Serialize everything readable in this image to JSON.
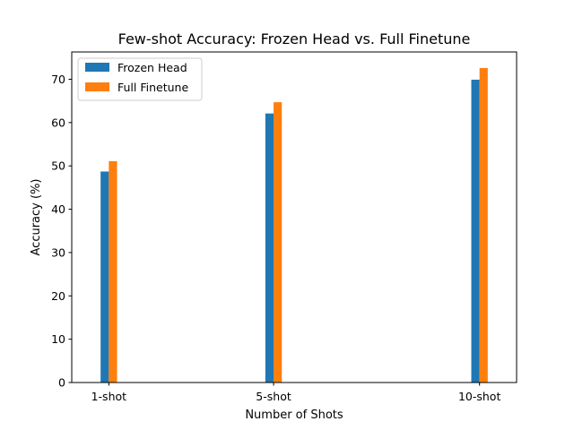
{
  "chart_data": {
    "type": "bar",
    "title": "Few-shot Accuracy: Frozen Head vs. Full Finetune",
    "xlabel": "Number of Shots",
    "ylabel": "Accuracy (%)",
    "x": [
      1,
      5,
      10
    ],
    "categories": [
      "1-shot",
      "5-shot",
      "10-shot"
    ],
    "xlim": [
      0.1,
      10.9
    ],
    "ylim": [
      0,
      76.3
    ],
    "yticks": [
      0,
      10,
      20,
      30,
      40,
      50,
      60,
      70
    ],
    "series": [
      {
        "name": "Frozen Head",
        "color": "#1f77b4",
        "values": [
          48.7,
          62.1,
          69.9
        ]
      },
      {
        "name": "Full Finetune",
        "color": "#ff7f0e",
        "values": [
          51.1,
          64.7,
          72.6
        ]
      }
    ],
    "grid": false,
    "legend": "top-left"
  }
}
